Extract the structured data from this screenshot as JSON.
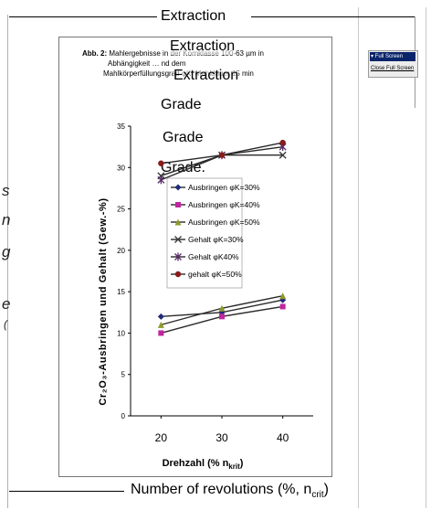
{
  "overlay": {
    "top_title": "Extraction",
    "extraction_2": "Extraction",
    "extraction_3": "Extraction",
    "grade_1": "Grade",
    "grade_2": "Grade",
    "grade_3": "Grade.",
    "bottom_caption": "Number of revolutions (%, n",
    "bottom_caption_sub": "crit",
    "bottom_caption_end": ")"
  },
  "toolbar": {
    "full_screen_label": "▾ Full Screen",
    "close_full_screen_label": "Close Full Screen"
  },
  "figure": {
    "caption_line1_prefix": "Abb. 2:",
    "caption_line1_rest": "Mahlergebnisse in der Kornklasse 100-63 µm in",
    "caption_line2": "Abhängigkeit … nd dem",
    "caption_line3": "Mahlkörperfüllungsgrad φK, Mahldauer 15 min"
  },
  "left_fragments": [
    "s",
    "n",
    "g",
    "e",
    "("
  ],
  "chart_data": {
    "type": "line",
    "xlabel": "Drehzahl (% n",
    "xlabel_sub": "krit",
    "xlabel_end": ")",
    "ylabel": "Cr₂O₃-Ausbringen und Gehalt (Gew.-%)",
    "x": [
      20,
      30,
      40
    ],
    "x_ticks": [
      "20",
      "30",
      "40"
    ],
    "ylim": [
      0,
      35
    ],
    "y_ticks": [
      "0",
      "5",
      "10",
      "15",
      "20",
      "25",
      "30",
      "35"
    ],
    "grid": false,
    "legend_position": "left-middle",
    "series": [
      {
        "name": "Ausbringen φK=30%",
        "marker": "diamond",
        "color": "#1f2a78",
        "values": [
          12.0,
          12.5,
          14.0
        ]
      },
      {
        "name": "Ausbringen φK=40%",
        "marker": "square",
        "color": "#c026a0",
        "values": [
          10.0,
          12.0,
          13.2
        ]
      },
      {
        "name": "Ausbringen φK=50%",
        "marker": "triangle",
        "color": "#8f9a2a",
        "values": [
          11.0,
          13.0,
          14.5
        ]
      },
      {
        "name": "Gehalt φK=30%",
        "marker": "x",
        "color": "#3a3a3a",
        "values": [
          29.0,
          31.5,
          31.5
        ]
      },
      {
        "name": "Gehalt φK40%",
        "marker": "star",
        "color": "#5a2d6a",
        "values": [
          28.5,
          31.5,
          32.5
        ]
      },
      {
        "name": "gehalt φK=50%",
        "marker": "circle",
        "color": "#8a1b1b",
        "values": [
          30.5,
          31.5,
          33.0
        ]
      }
    ]
  }
}
